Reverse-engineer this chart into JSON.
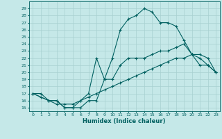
{
  "xlabel": "Humidex (Indice chaleur)",
  "bg_color": "#c5e8e8",
  "grid_color": "#a8d0d0",
  "line_color": "#006060",
  "xlim": [
    -0.5,
    23.5
  ],
  "ylim": [
    14.5,
    30.0
  ],
  "xticks": [
    0,
    1,
    2,
    3,
    4,
    5,
    6,
    7,
    8,
    9,
    10,
    11,
    12,
    13,
    14,
    15,
    16,
    17,
    18,
    19,
    20,
    21,
    22,
    23
  ],
  "yticks": [
    15,
    16,
    17,
    18,
    19,
    20,
    21,
    22,
    23,
    24,
    25,
    26,
    27,
    28,
    29
  ],
  "series": [
    {
      "x": [
        0,
        1,
        2,
        3,
        4,
        5,
        6,
        7,
        8,
        9,
        10,
        11,
        12,
        13,
        14,
        15,
        16,
        17,
        18,
        19,
        20,
        21,
        22,
        23
      ],
      "y": [
        17,
        16.5,
        16,
        15.5,
        15.5,
        15.5,
        16,
        16.5,
        17,
        17.5,
        18,
        18.5,
        19,
        19.5,
        20,
        20.5,
        21,
        21.5,
        22,
        22,
        22.5,
        22.5,
        22,
        20
      ]
    },
    {
      "x": [
        0,
        1,
        2,
        3,
        4,
        5,
        6,
        7,
        8,
        9,
        10,
        11,
        12,
        13,
        14,
        15,
        16,
        17,
        18,
        19,
        20,
        21,
        22,
        23
      ],
      "y": [
        17,
        17,
        16,
        16,
        15,
        15,
        15,
        16,
        16,
        19,
        19,
        21,
        22,
        22,
        22,
        22.5,
        23,
        23,
        23.5,
        24,
        22.5,
        21,
        21,
        20
      ]
    },
    {
      "x": [
        0,
        2,
        3,
        4,
        5,
        6,
        7,
        8,
        9,
        10,
        11,
        12,
        13,
        14,
        15,
        16,
        17,
        18,
        19,
        20,
        21,
        22,
        23
      ],
      "y": [
        17,
        16,
        16,
        15,
        15,
        16,
        17,
        22,
        19,
        22,
        26,
        27.5,
        28,
        29,
        28.5,
        27,
        27,
        26.5,
        24.5,
        22.5,
        22,
        21,
        20
      ]
    }
  ]
}
